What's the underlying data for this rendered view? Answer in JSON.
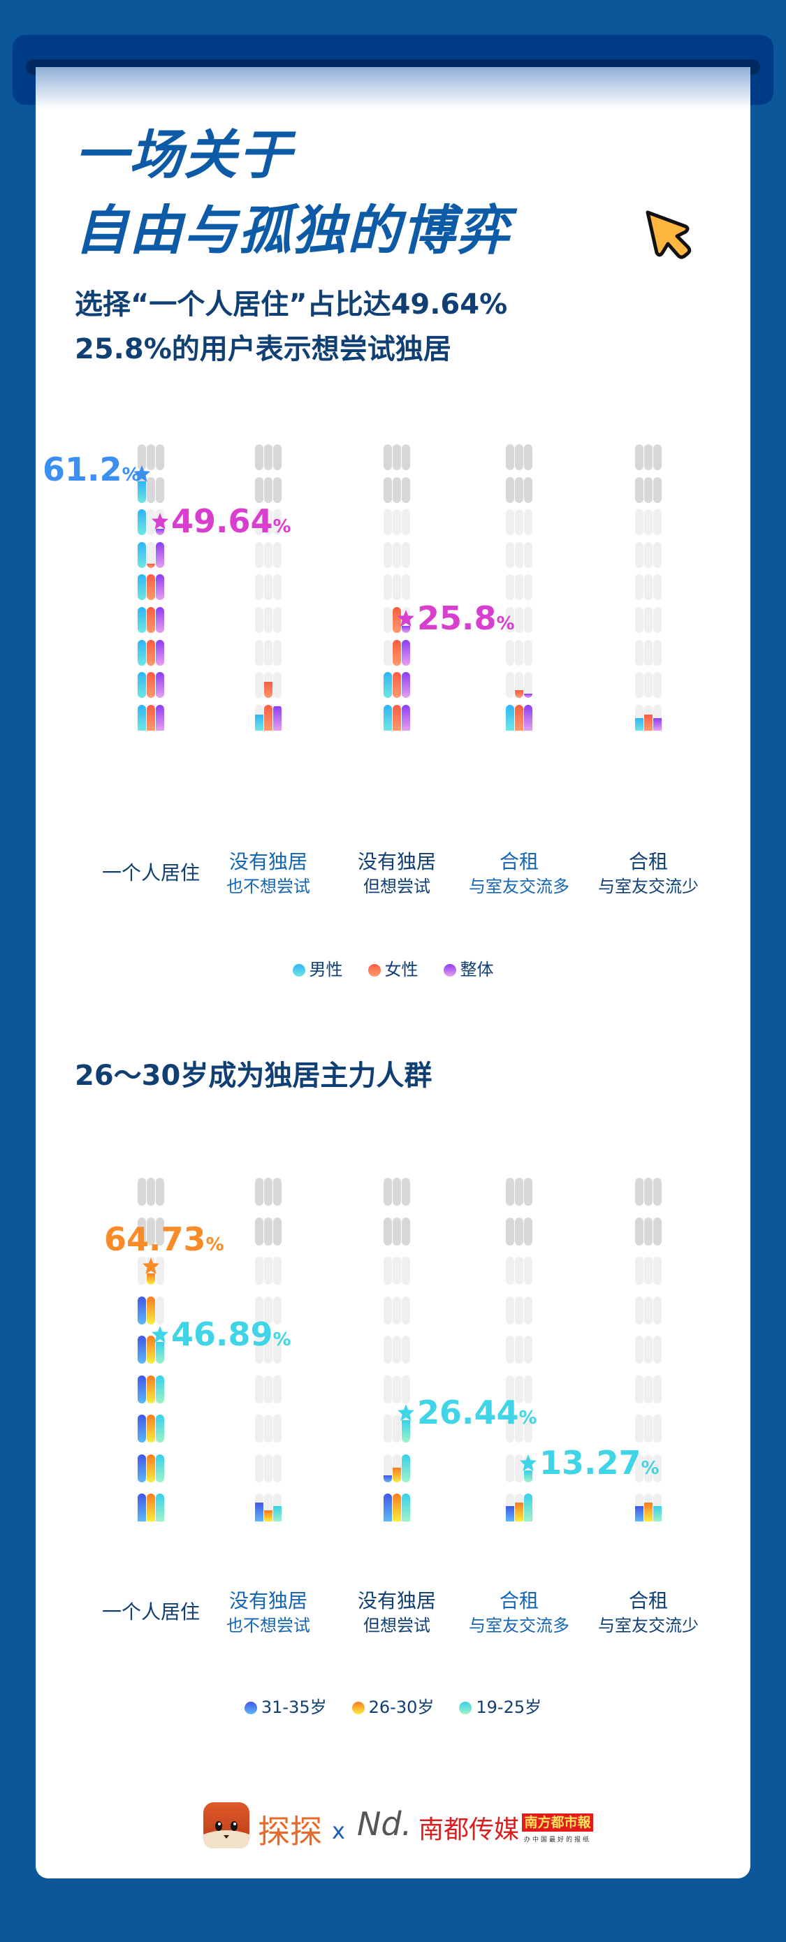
{
  "header": {
    "title_line1": "一场关于",
    "title_line2": "自由与孤独的博弈",
    "subtitle_line1": "选择“一个人居住”占比达49.64%",
    "subtitle_line2": "25.8%的用户表示想尝试独居",
    "cursor_icon": "cursor-arrow-icon"
  },
  "colors": {
    "background": "#0b5799",
    "card": "#ffffff",
    "title": "#0d5aa7",
    "text_dark": "#0f3f73",
    "text_blue": "#1565b5",
    "male": "#3cc3f2",
    "female": "#fa6a4c",
    "overall": "#9a45f0",
    "age_31_35": "#4a63e8",
    "age_26_30": "#f98a28",
    "age_19_25": "#3fd5e6",
    "cursor_fill": "#fdb73e"
  },
  "section2": {
    "title": "26～30岁成为独居主力人群"
  },
  "categories": [
    {
      "line1": "一个人居住",
      "line2": "",
      "style": "dark"
    },
    {
      "line1": "没有独居",
      "line2": "也不想尝试",
      "style": "blue"
    },
    {
      "line1": "没有独居",
      "line2": "但想尝试",
      "style": "dark"
    },
    {
      "line1": "合租",
      "line2": "与室友交流多",
      "style": "blue"
    },
    {
      "line1": "合租",
      "line2": "与室友交流少",
      "style": "dark"
    }
  ],
  "chart_data": [
    {
      "type": "bar",
      "title": "选择“一个人居住”占比达49.64%",
      "categories": [
        "一个人居住",
        "没有独居也不想尝试",
        "没有独居但想尝试",
        "合租与室友交流多",
        "合租与室友交流少"
      ],
      "series": [
        {
          "name": "男性",
          "values": [
            61.2,
            4,
            16,
            7,
            3
          ]
        },
        {
          "name": "女性",
          "values": [
            41,
            12,
            31,
            10,
            4
          ]
        },
        {
          "name": "整体",
          "values": [
            49.64,
            6,
            25.8,
            9,
            3
          ]
        }
      ],
      "annotations": [
        {
          "category": 0,
          "series": "男性",
          "text": "61.2",
          "unit": "%"
        },
        {
          "category": 0,
          "series": "整体",
          "text": "49.64",
          "unit": "%"
        },
        {
          "category": 2,
          "series": "整体",
          "text": "25.8",
          "unit": "%"
        }
      ],
      "legend": [
        "男性",
        "女性",
        "整体"
      ],
      "legend_position": "bottom",
      "xlabel": "",
      "ylabel": "",
      "ylim": [
        0,
        72
      ],
      "grid": false
    },
    {
      "type": "bar",
      "title": "26～30岁成为独居主力人群",
      "categories": [
        "一个人居住",
        "没有独居也不想尝试",
        "没有独居但想尝试",
        "合租与室友交流多",
        "合租与室友交流少"
      ],
      "series": [
        {
          "name": "31-35岁",
          "values": [
            61,
            5,
            12,
            4,
            4
          ]
        },
        {
          "name": "26-30岁",
          "values": [
            64.73,
            3,
            14,
            5,
            5
          ]
        },
        {
          "name": "19-25岁",
          "values": [
            46.89,
            4,
            26.44,
            13.27,
            4
          ]
        }
      ],
      "annotations": [
        {
          "category": 0,
          "series": "26-30岁",
          "text": "64.73",
          "unit": "%"
        },
        {
          "category": 0,
          "series": "19-25岁",
          "text": "46.89",
          "unit": "%"
        },
        {
          "category": 2,
          "series": "19-25岁",
          "text": "26.44",
          "unit": "%"
        },
        {
          "category": 3,
          "series": "19-25岁",
          "text": "13.27",
          "unit": "%"
        }
      ],
      "legend": [
        "31-35岁",
        "26-30岁",
        "19-25岁"
      ],
      "legend_position": "bottom",
      "xlabel": "",
      "ylabel": "",
      "ylim": [
        0,
        90
      ],
      "grid": false
    }
  ],
  "legend1": [
    {
      "label": "男性",
      "color_from": "#2fb5f7",
      "color_to": "#6fe6e3"
    },
    {
      "label": "女性",
      "color_from": "#fa5c44",
      "color_to": "#fd9a6c"
    },
    {
      "label": "整体",
      "color_from": "#8b3ef2",
      "color_to": "#e6a0ef"
    }
  ],
  "legend2": [
    {
      "label": "31-35岁",
      "color_from": "#4257e8",
      "color_to": "#5cb8f8"
    },
    {
      "label": "26-30岁",
      "color_from": "#f97b22",
      "color_to": "#f8ef3c"
    },
    {
      "label": "19-25岁",
      "color_from": "#36d2ea",
      "color_to": "#9ff2c6"
    }
  ],
  "footer": {
    "brand1": "探探",
    "separator": "x",
    "brand2_mark": "Nd.",
    "brand2": "南都传媒",
    "brand3": "南方都市報",
    "brand3_tagline": "办中国最好的报纸"
  }
}
